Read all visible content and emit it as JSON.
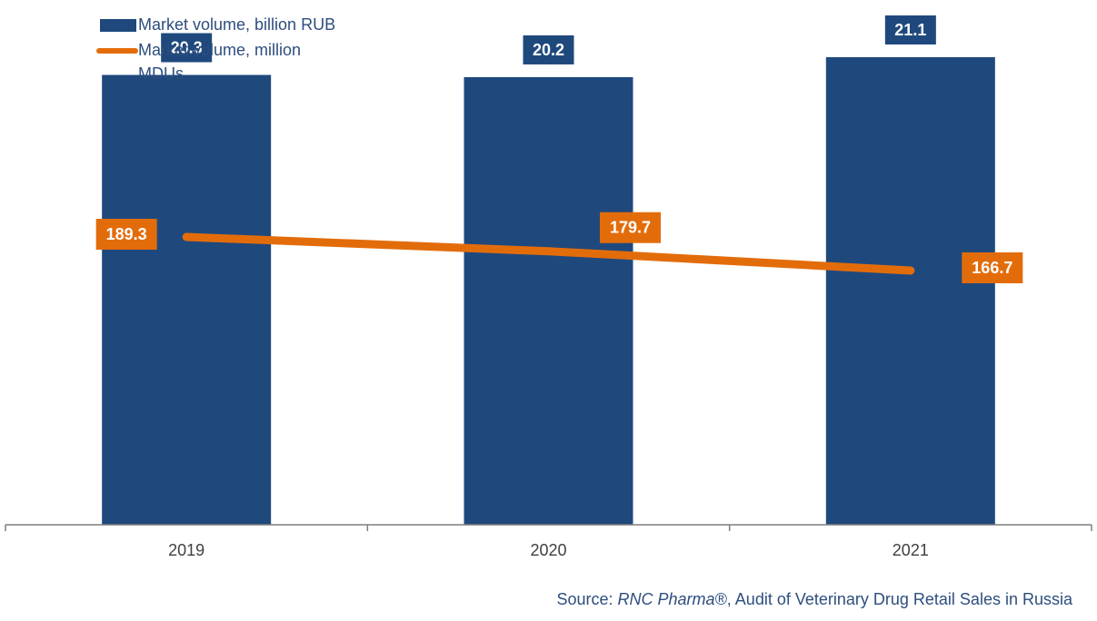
{
  "colors": {
    "bar": "#1f497d",
    "line": "#e36c0a",
    "text": "#2d4e7e",
    "axis": "#7f7f7f"
  },
  "legend": {
    "bar_label": "Market volume, billion RUB",
    "line_label": "Market volume, million MDUs"
  },
  "source": {
    "prefix": "Source: ",
    "company": "RNC Pharma®",
    "rest": ", Audit of Veterinary Drug Retail Sales in Russia"
  },
  "chart_data": {
    "type": "bar",
    "title": "",
    "xlabel": "",
    "ylabel": "",
    "categories": [
      "2019",
      "2020",
      "2021"
    ],
    "series": [
      {
        "name": "Market volume, billion RUB",
        "type": "bar",
        "values": [
          20.3,
          20.2,
          21.1
        ],
        "labels": [
          "20.3",
          "20.2",
          "21.1"
        ]
      },
      {
        "name": "Market volume, million MDUs",
        "type": "line",
        "values": [
          189.3,
          179.7,
          166.7
        ],
        "labels": [
          "189.3",
          "179.7",
          "166.7"
        ]
      }
    ],
    "ylim_bar": [
      0,
      23.5
    ],
    "ylim_line": [
      0,
      350
    ],
    "grid": false,
    "legend_position": "top-left"
  }
}
